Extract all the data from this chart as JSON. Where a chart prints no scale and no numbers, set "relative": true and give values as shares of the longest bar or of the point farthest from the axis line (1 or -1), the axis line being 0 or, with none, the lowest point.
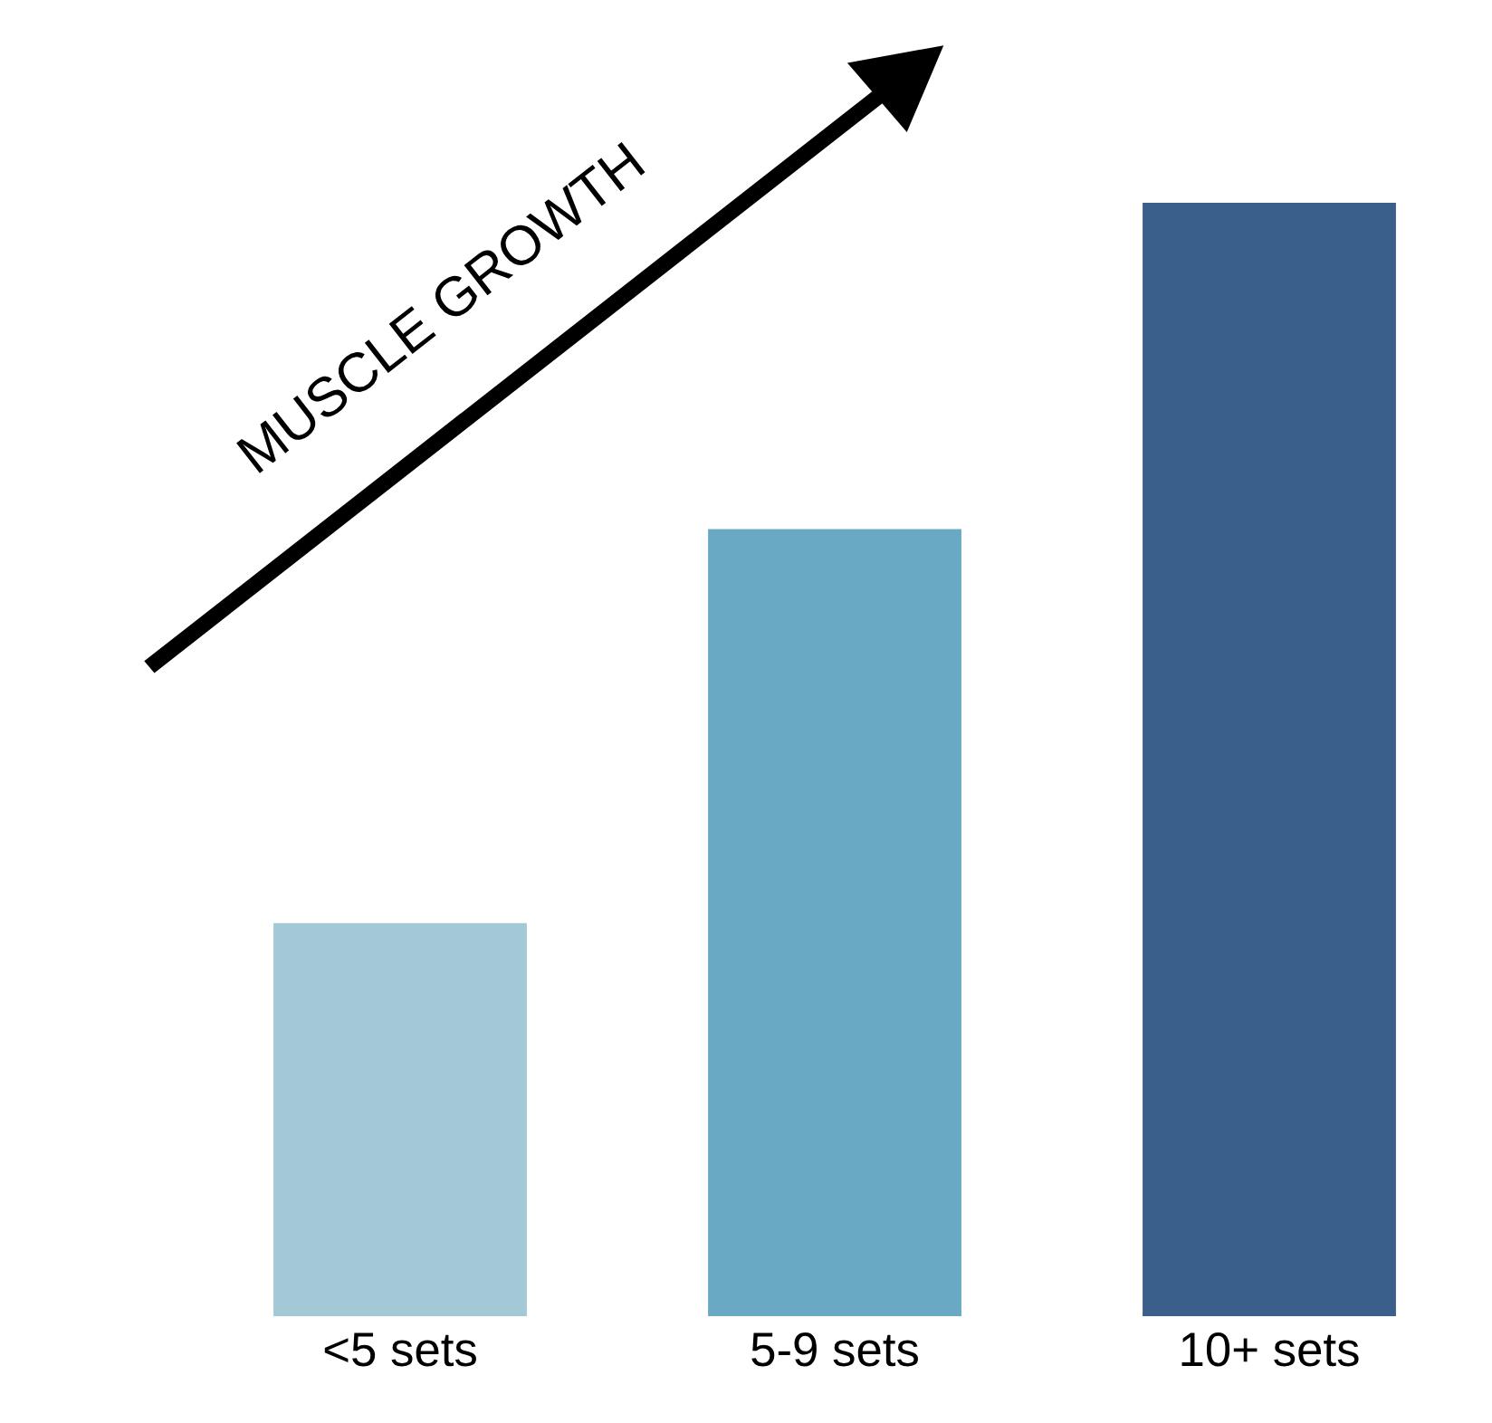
{
  "chart_data": {
    "type": "bar",
    "relative": true,
    "categories": [
      "<5 sets",
      "5-9 sets",
      "10+ sets"
    ],
    "values": [
      0.353,
      0.707,
      1
    ],
    "colors": [
      "#a3c8d6",
      "#6aa9c4",
      "#3a5f8a"
    ],
    "annotations": [
      "MUSCLE GROWTH"
    ],
    "grid": false,
    "legend": false
  }
}
